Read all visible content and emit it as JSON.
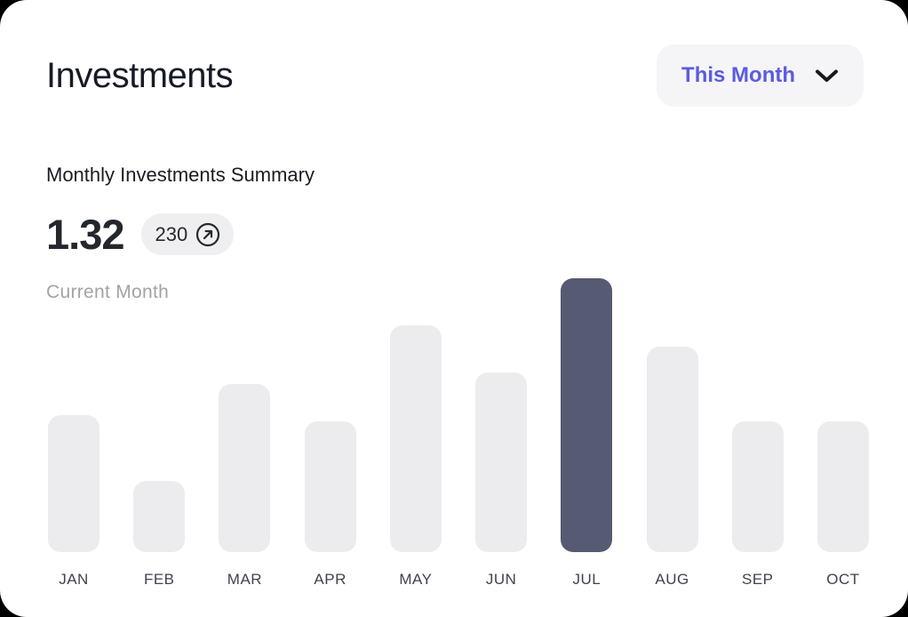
{
  "page": {
    "outer_background": "#000000",
    "card_background": "#ffffff"
  },
  "header": {
    "title": "Investments",
    "period_selector": {
      "label": "This Month",
      "text_color": "#5b5be0",
      "background": "#f5f5f7",
      "icon": "chevron-down-icon"
    }
  },
  "summary": {
    "subtitle": "Monthly Investments Summary",
    "value": "1.32",
    "badge": {
      "count": "230",
      "icon": "arrow-up-right-circle-icon",
      "background": "#efeff1"
    },
    "caption": "Current Month"
  },
  "chart_data": {
    "type": "bar",
    "title": "Monthly Investments Summary",
    "categories": [
      "JAN",
      "FEB",
      "MAR",
      "APR",
      "MAY",
      "JUN",
      "JUL",
      "AUG",
      "SEP",
      "OCT"
    ],
    "values": [
      154,
      80,
      189,
      147,
      255,
      202,
      308,
      231,
      147,
      147
    ],
    "value_units": "relative-px (no y-axis shown)",
    "highlighted_category": "JUL",
    "highlight_index": 6,
    "bar_color": "#ececee",
    "highlight_color": "#565a73",
    "xlabel": "",
    "ylabel": "",
    "grid": false,
    "legend": false
  }
}
